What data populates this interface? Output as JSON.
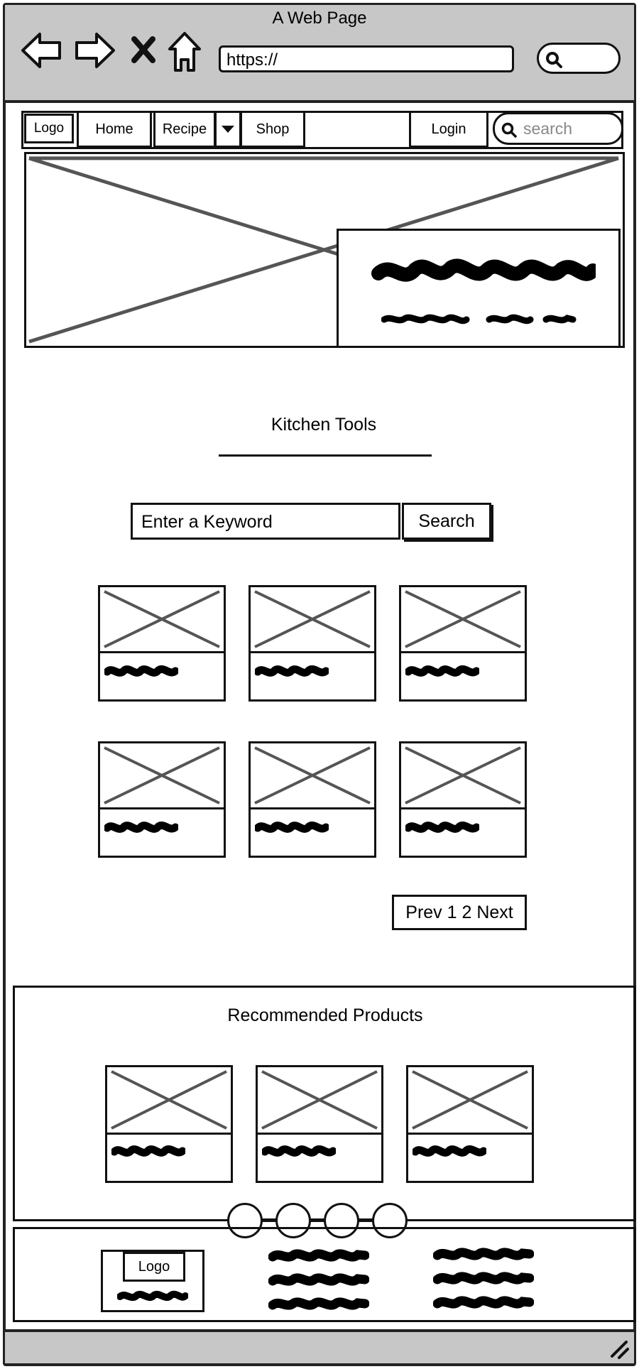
{
  "browser": {
    "title": "A Web Page",
    "url": "https://",
    "icons": [
      "back-arrow-icon",
      "forward-arrow-icon",
      "close-icon",
      "home-icon",
      "search-icon"
    ]
  },
  "nav": {
    "logo": "Logo",
    "home": "Home",
    "recipe": "Recipe",
    "shop": "Shop",
    "login": "Login",
    "search_placeholder": "search"
  },
  "section": {
    "title": "Kitchen Tools",
    "keyword_placeholder": "Enter a Keyword",
    "search_button": "Search"
  },
  "pagination": {
    "label": "Prev 1 2 Next"
  },
  "recommended": {
    "title": "Recommended Products"
  },
  "footer": {
    "logo": "Logo"
  }
}
